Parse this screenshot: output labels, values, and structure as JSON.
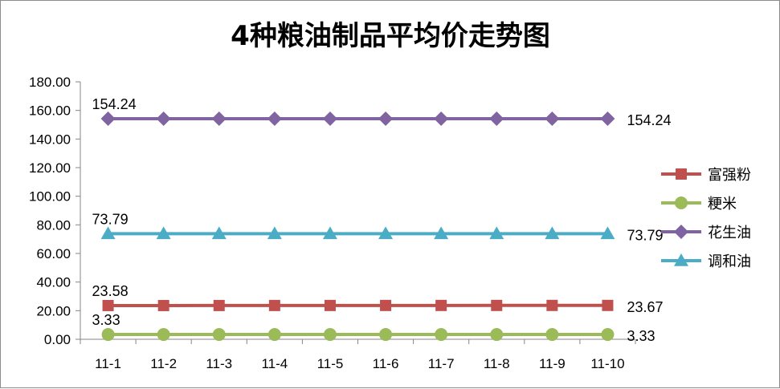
{
  "chart_data": {
    "type": "line",
    "title": "4种粮油制品平均价走势图",
    "categories": [
      "11-1",
      "11-2",
      "11-3",
      "11-4",
      "11-5",
      "11-6",
      "11-7",
      "11-8",
      "11-9",
      "11-10"
    ],
    "ylim": [
      0,
      180
    ],
    "yticks": [
      "0.00",
      "20.00",
      "40.00",
      "60.00",
      "80.00",
      "100.00",
      "120.00",
      "140.00",
      "160.00",
      "180.00"
    ],
    "grid": false,
    "legend_position": "right",
    "series": [
      {
        "name": "富强粉",
        "color": "#c0504d",
        "marker": "square",
        "values": [
          23.58,
          23.58,
          23.6,
          23.62,
          23.63,
          23.64,
          23.65,
          23.66,
          23.67,
          23.67
        ],
        "start_label": "23.58",
        "end_label": "23.67"
      },
      {
        "name": "粳米",
        "color": "#9bbb59",
        "marker": "circle",
        "values": [
          3.33,
          3.33,
          3.33,
          3.33,
          3.33,
          3.33,
          3.33,
          3.33,
          3.33,
          3.33
        ],
        "start_label": "3.33",
        "end_label": "3.33"
      },
      {
        "name": "花生油",
        "color": "#8064a2",
        "marker": "diamond",
        "values": [
          154.24,
          154.24,
          154.24,
          154.24,
          154.24,
          154.24,
          154.24,
          154.24,
          154.24,
          154.24
        ],
        "start_label": "154.24",
        "end_label": "154.24"
      },
      {
        "name": "调和油",
        "color": "#4bacc6",
        "marker": "triangle",
        "values": [
          73.79,
          73.79,
          73.79,
          73.79,
          73.79,
          73.79,
          73.79,
          73.79,
          73.79,
          73.79
        ],
        "start_label": "73.79",
        "end_label": "73.79"
      }
    ]
  }
}
